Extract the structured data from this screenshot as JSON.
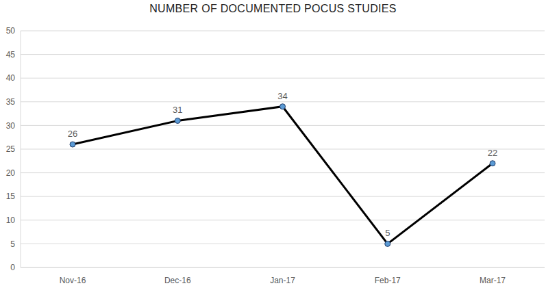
{
  "chart_data": {
    "type": "line",
    "title": "NUMBER OF DOCUMENTED POCUS STUDIES",
    "categories": [
      "Nov-16",
      "Dec-16",
      "Jan-17",
      "Feb-17",
      "Mar-17"
    ],
    "values": [
      26,
      31,
      34,
      5,
      22
    ],
    "color": "#000000",
    "marker": "circle",
    "ylim": [
      0,
      50
    ],
    "yticks": [
      0,
      5,
      10,
      15,
      20,
      25,
      30,
      35,
      40,
      45,
      50
    ],
    "grid": true,
    "data_labels": true
  }
}
